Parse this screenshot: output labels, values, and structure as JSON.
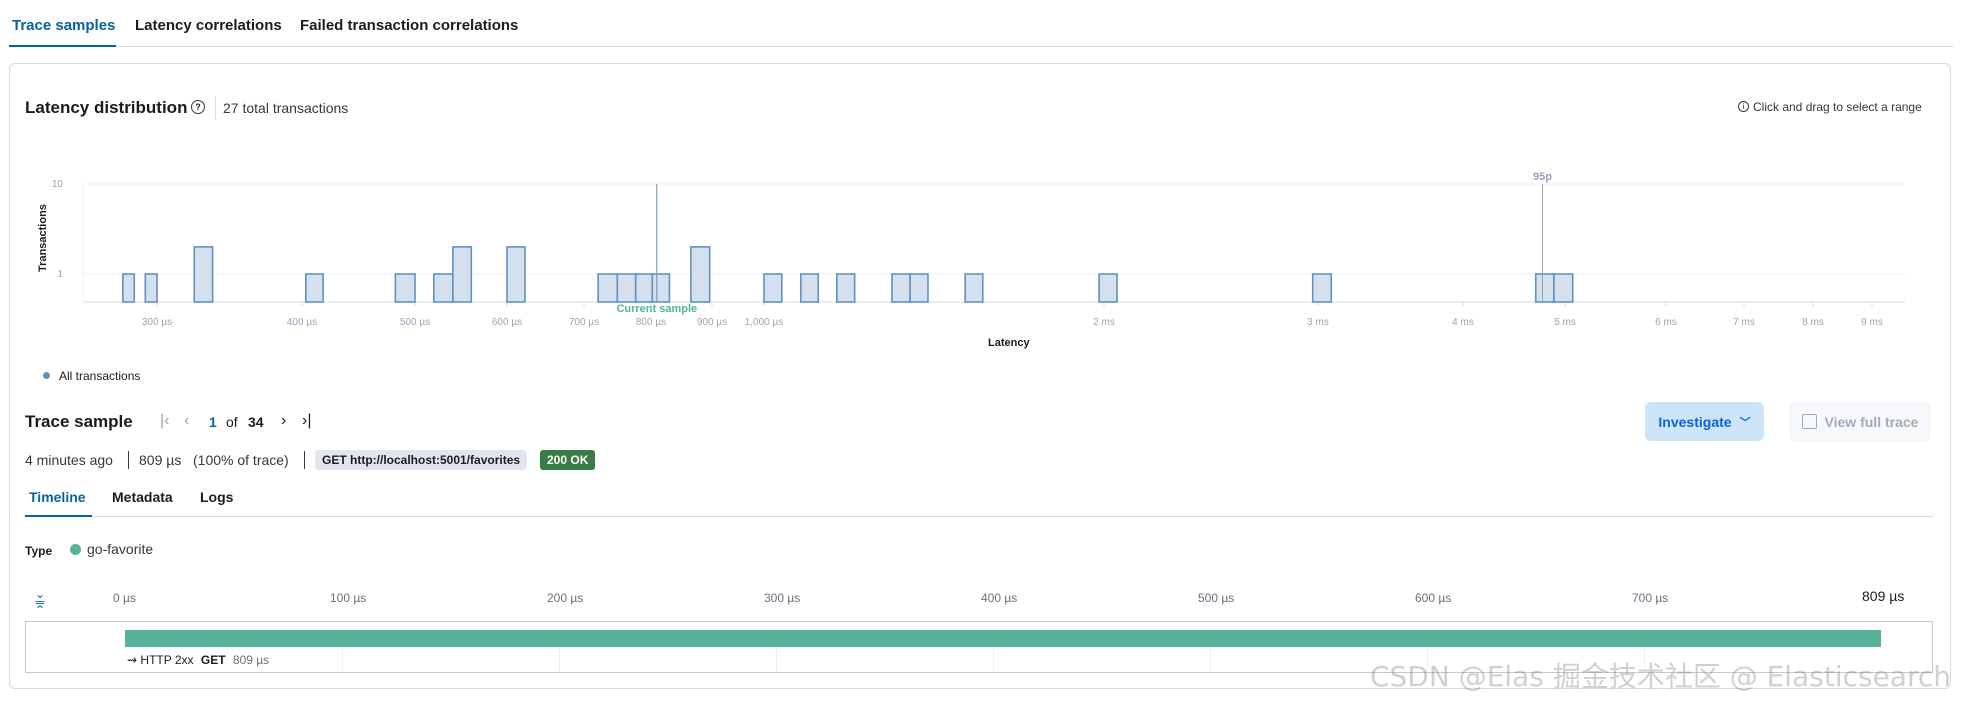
{
  "tabs": [
    {
      "label": "Trace samples"
    },
    {
      "label": "Latency correlations"
    },
    {
      "label": "Failed transaction correlations"
    }
  ],
  "latency": {
    "title": "Latency distribution",
    "help_icon": "question-circle-icon",
    "total": "27 total transactions",
    "hint": "Click and drag to select a range",
    "legend": "All transactions"
  },
  "chart_data": {
    "type": "bar",
    "title": "Latency distribution",
    "xlabel": "Latency",
    "ylabel": "Transactions",
    "xscale": "log",
    "yscale": "log",
    "ylim": [
      0.5,
      10
    ],
    "y_ticks": [
      {
        "v": 10,
        "label": "10"
      },
      {
        "v": 1,
        "label": "1"
      }
    ],
    "x_ticks": [
      {
        "v": 300,
        "label": "300 µs"
      },
      {
        "v": 400,
        "label": "400 µs"
      },
      {
        "v": 500,
        "label": "500 µs"
      },
      {
        "v": 600,
        "label": "600 µs"
      },
      {
        "v": 700,
        "label": "700 µs"
      },
      {
        "v": 800,
        "label": "800 µs"
      },
      {
        "v": 900,
        "label": "900 µs"
      },
      {
        "v": 1000,
        "label": "1,000 µs"
      },
      {
        "v": 2000,
        "label": "2 ms"
      },
      {
        "v": 3000,
        "label": "3 ms"
      },
      {
        "v": 4000,
        "label": "4 ms"
      },
      {
        "v": 5000,
        "label": "5 ms"
      },
      {
        "v": 6000,
        "label": "6 ms"
      },
      {
        "v": 7000,
        "label": "7 ms"
      },
      {
        "v": 8000,
        "label": "8 ms"
      },
      {
        "v": 9000,
        "label": "9 ms"
      }
    ],
    "series": [
      {
        "name": "All transactions",
        "color": "#6092c0",
        "fill": "#d4e0ee",
        "bins_us": [
          [
            269,
            279,
            1
          ],
          [
            289,
            300,
            1
          ],
          [
            323,
            335,
            2
          ],
          [
            403,
            417,
            1
          ],
          [
            481,
            500,
            1
          ],
          [
            519,
            539,
            1
          ],
          [
            539,
            559,
            2
          ],
          [
            600,
            622,
            2
          ],
          [
            720,
            748,
            1
          ],
          [
            748,
            776,
            1
          ],
          [
            776,
            802,
            1
          ],
          [
            802,
            829,
            1
          ],
          [
            864,
            896,
            2
          ],
          [
            1000,
            1037,
            1
          ],
          [
            1078,
            1117,
            1
          ],
          [
            1160,
            1203,
            1
          ],
          [
            1298,
            1347,
            1
          ],
          [
            1347,
            1397,
            1
          ],
          [
            1507,
            1562,
            1
          ],
          [
            1980,
            2050,
            1
          ],
          [
            2970,
            3080,
            1
          ],
          [
            4690,
            4880,
            1
          ],
          [
            4880,
            5070,
            1
          ]
        ]
      }
    ],
    "annotations": [
      {
        "label": "Current sample",
        "value_us": 809,
        "color": "#54b399"
      },
      {
        "label": "95p",
        "value_us": 4760,
        "color": "#98a2b3"
      }
    ]
  },
  "trace": {
    "title": "Trace sample",
    "page": "1",
    "of": "of",
    "total_pages": "34",
    "investigate": "Investigate",
    "view_full_trace": "View full trace",
    "age": "4 minutes ago",
    "duration": "809 µs",
    "pct": "(100% of trace)",
    "request": "GET http://localhost:5001/favorites",
    "status": "200 OK",
    "status_color": "#387d45"
  },
  "subtabs": [
    {
      "label": "Timeline"
    },
    {
      "label": "Metadata"
    },
    {
      "label": "Logs"
    }
  ],
  "type_row": {
    "label": "Type",
    "value": "go-favorite",
    "color": "#54b399"
  },
  "timeline": {
    "ticks": [
      "0 µs",
      "100 µs",
      "200 µs",
      "300 µs",
      "400 µs",
      "500 µs",
      "600 µs",
      "700 µs"
    ],
    "max_label": "809 µs",
    "span": {
      "result": "HTTP 2xx",
      "method": "GET",
      "duration": "809 µs",
      "duration_us": 809,
      "color": "#54b399"
    }
  },
  "watermark": "CSDN @Elas 掘金技术社区 @ Elasticsearch"
}
